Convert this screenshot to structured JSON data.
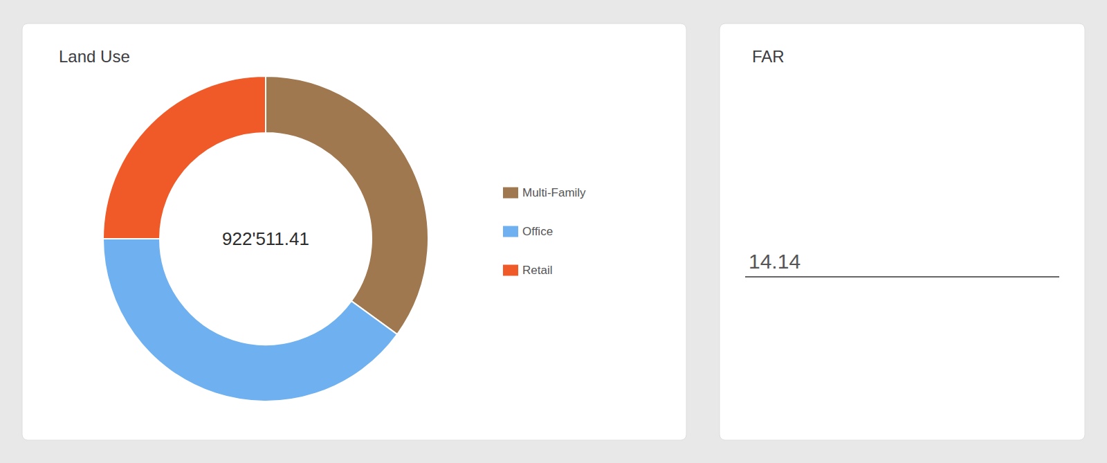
{
  "chart_data": [
    {
      "type": "pie",
      "title": "Land Use",
      "categories": [
        "Multi-Family",
        "Office",
        "Retail"
      ],
      "values": [
        35,
        40,
        25
      ],
      "colors": [
        "#A07850",
        "#6EB0F0",
        "#F05A28"
      ],
      "annotations": [
        "922'511.41"
      ],
      "legend": "right"
    },
    {
      "type": "kpi",
      "title": "FAR",
      "value": 14.14
    }
  ]
}
